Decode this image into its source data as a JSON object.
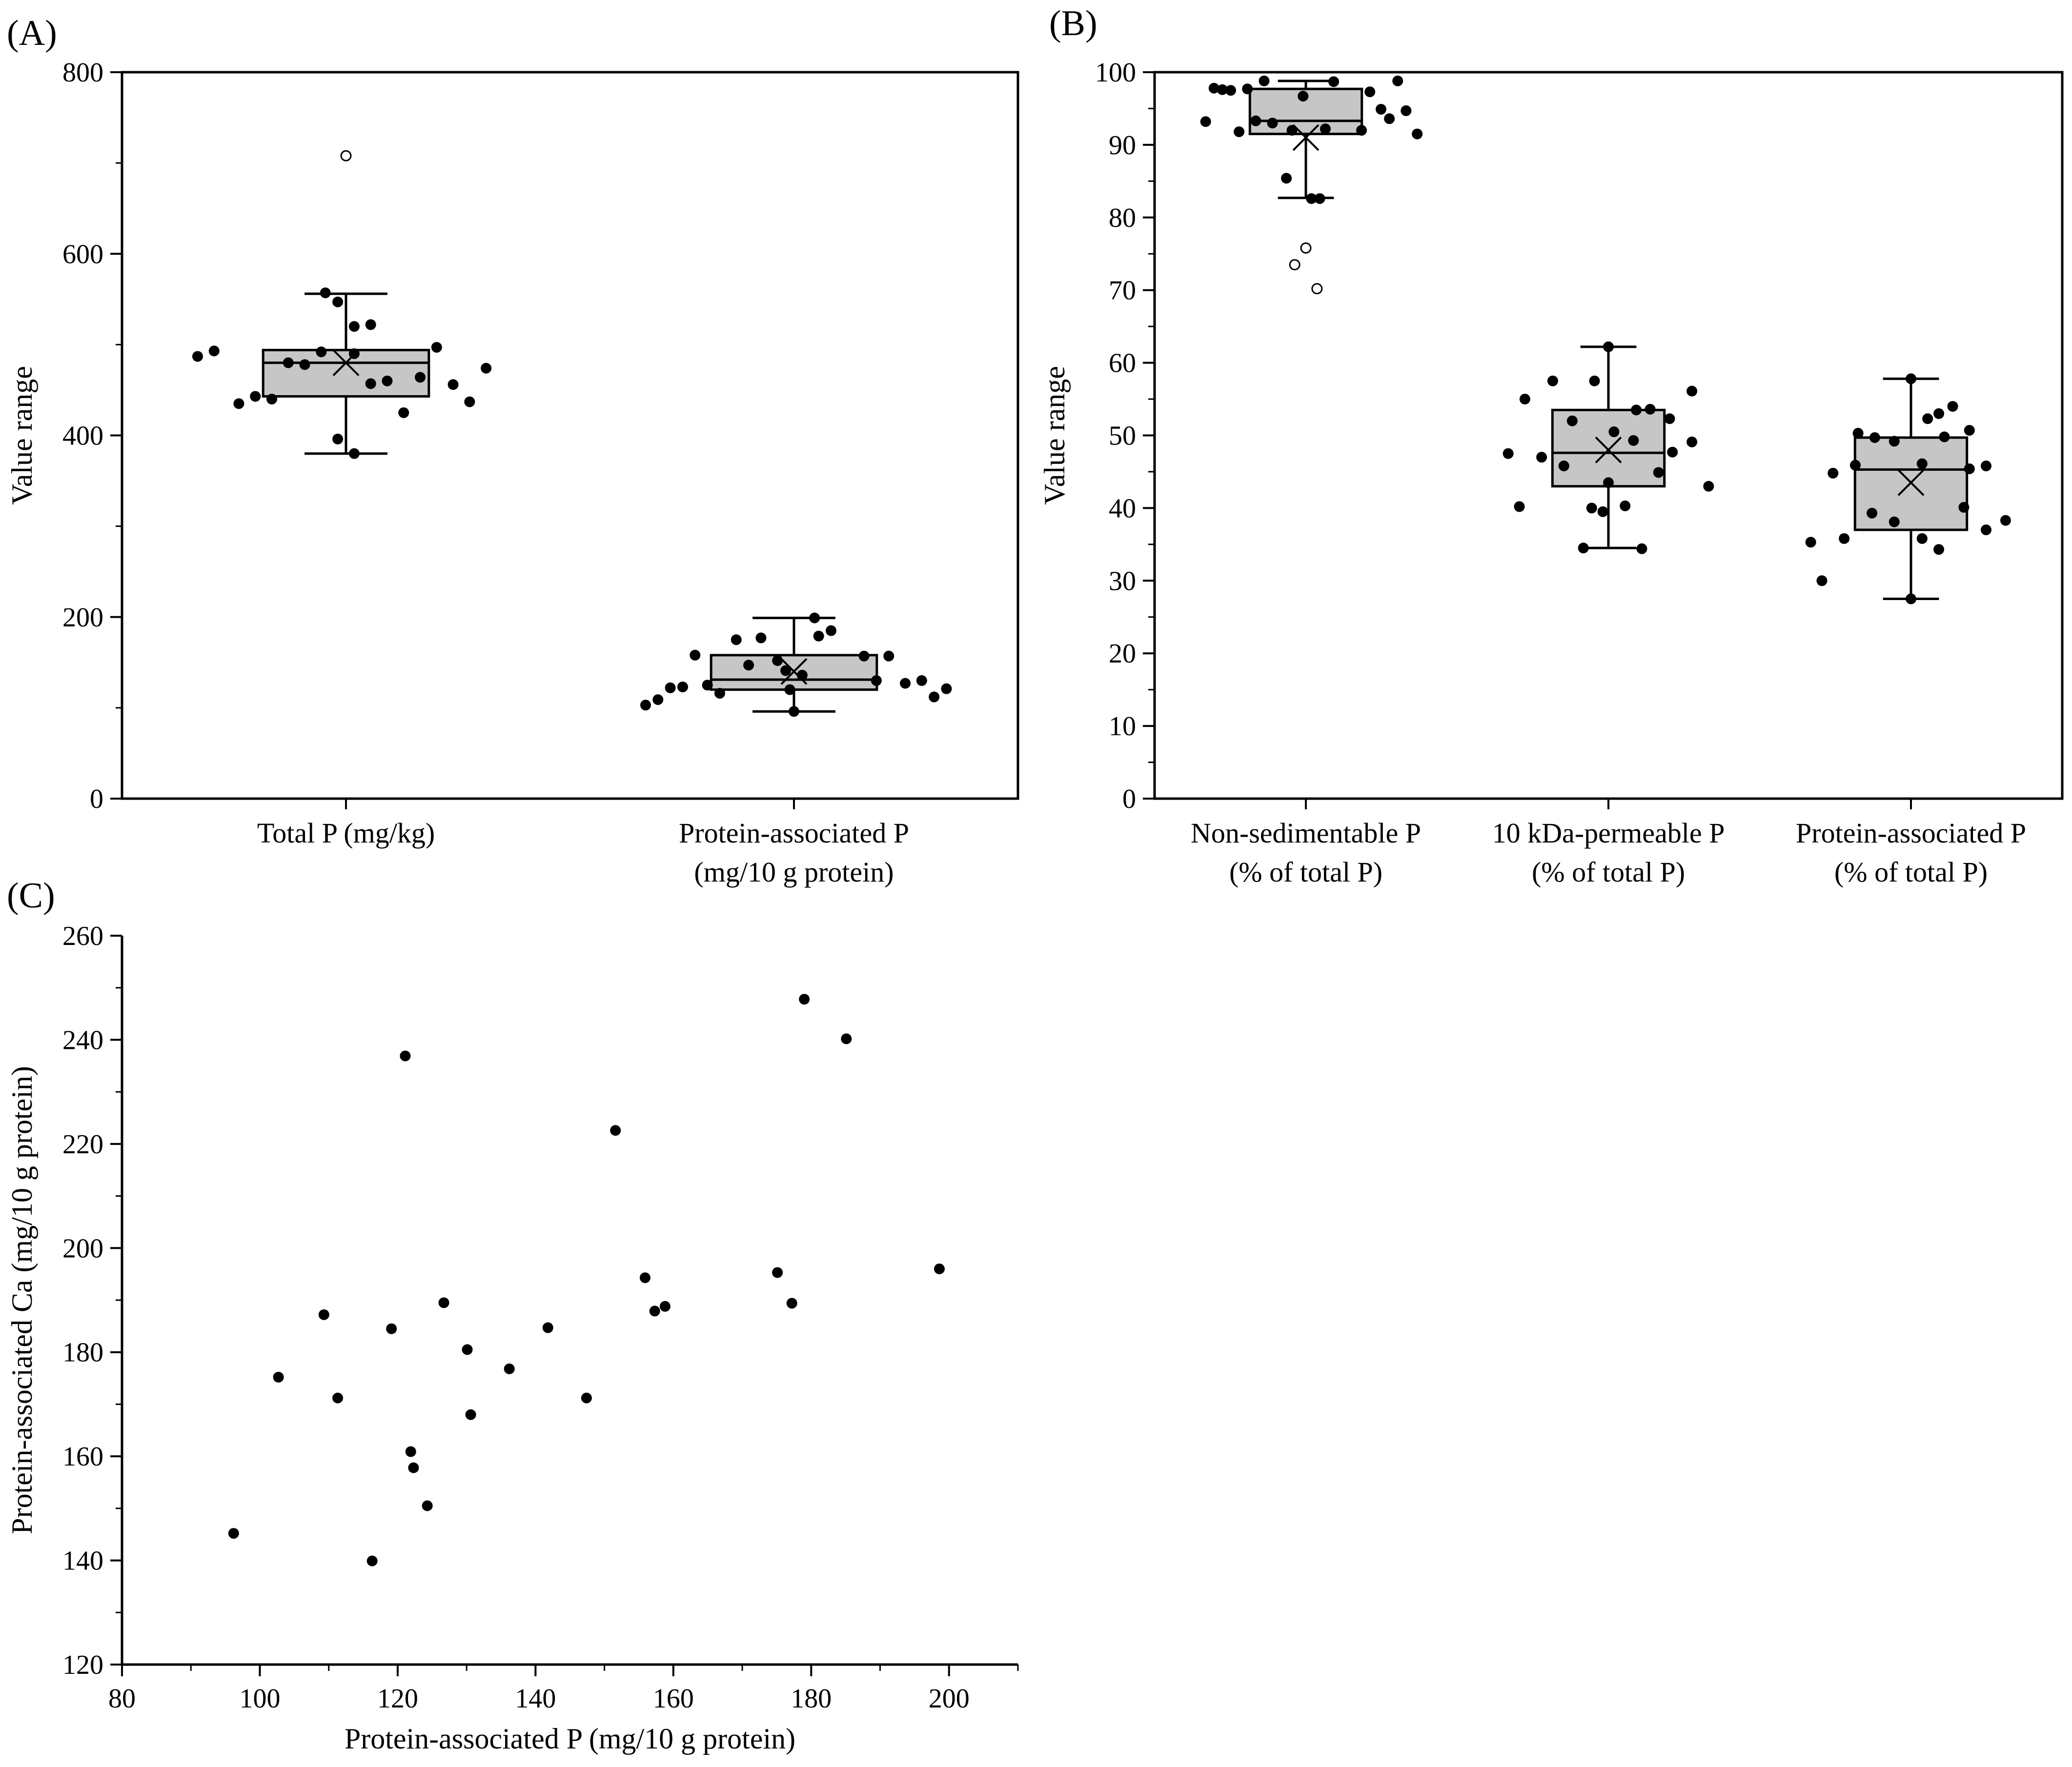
{
  "chart_data": [
    {
      "panel_label": "(A)",
      "type": "box",
      "ylabel": "Value range",
      "ylim": [
        0,
        800
      ],
      "yticks": [
        0,
        200,
        400,
        600,
        800
      ],
      "categories": [
        {
          "label_lines": [
            "Total P (mg/kg)"
          ],
          "box": {
            "q1": 443,
            "median": 480,
            "q3": 494,
            "mean": 480,
            "whisker_low": 380,
            "whisker_high": 556
          },
          "outliers": [
            708
          ],
          "points": [
            {
              "dx": -0.36,
              "v": 487
            },
            {
              "dx": -0.32,
              "v": 493
            },
            {
              "dx": -0.26,
              "v": 435
            },
            {
              "dx": -0.22,
              "v": 443
            },
            {
              "dx": -0.18,
              "v": 440
            },
            {
              "dx": -0.14,
              "v": 480
            },
            {
              "dx": -0.1,
              "v": 478
            },
            {
              "dx": -0.06,
              "v": 492
            },
            {
              "dx": -0.02,
              "v": 547
            },
            {
              "dx": -0.02,
              "v": 396
            },
            {
              "dx": -0.05,
              "v": 557
            },
            {
              "dx": 0.02,
              "v": 490
            },
            {
              "dx": 0.02,
              "v": 380
            },
            {
              "dx": 0.02,
              "v": 520
            },
            {
              "dx": 0.06,
              "v": 522
            },
            {
              "dx": 0.06,
              "v": 457
            },
            {
              "dx": 0.1,
              "v": 460
            },
            {
              "dx": 0.14,
              "v": 425
            },
            {
              "dx": 0.18,
              "v": 464
            },
            {
              "dx": 0.22,
              "v": 497
            },
            {
              "dx": 0.26,
              "v": 456
            },
            {
              "dx": 0.3,
              "v": 437
            },
            {
              "dx": 0.34,
              "v": 474
            }
          ]
        },
        {
          "label_lines": [
            "Protein-associated P",
            "(mg/10 g protein)"
          ],
          "box": {
            "q1": 120,
            "median": 131,
            "q3": 158,
            "mean": 140,
            "whisker_low": 96,
            "whisker_high": 199
          },
          "outliers": [],
          "points": [
            {
              "dx": -0.36,
              "v": 103
            },
            {
              "dx": -0.33,
              "v": 109
            },
            {
              "dx": -0.3,
              "v": 122
            },
            {
              "dx": -0.27,
              "v": 123
            },
            {
              "dx": -0.24,
              "v": 158
            },
            {
              "dx": -0.21,
              "v": 125
            },
            {
              "dx": -0.18,
              "v": 116
            },
            {
              "dx": -0.14,
              "v": 175
            },
            {
              "dx": -0.11,
              "v": 147
            },
            {
              "dx": -0.08,
              "v": 177
            },
            {
              "dx": -0.04,
              "v": 152
            },
            {
              "dx": -0.02,
              "v": 141
            },
            {
              "dx": 0.0,
              "v": 96
            },
            {
              "dx": 0.02,
              "v": 136
            },
            {
              "dx": 0.05,
              "v": 199
            },
            {
              "dx": 0.06,
              "v": 179
            },
            {
              "dx": 0.09,
              "v": 185
            },
            {
              "dx": -0.01,
              "v": 120
            },
            {
              "dx": 0.17,
              "v": 157
            },
            {
              "dx": 0.2,
              "v": 130
            },
            {
              "dx": 0.23,
              "v": 157
            },
            {
              "dx": 0.27,
              "v": 127
            },
            {
              "dx": 0.31,
              "v": 130
            },
            {
              "dx": 0.34,
              "v": 112
            },
            {
              "dx": 0.37,
              "v": 121
            }
          ]
        }
      ]
    },
    {
      "panel_label": "(B)",
      "type": "box",
      "ylabel": "Value range",
      "ylim": [
        0,
        100
      ],
      "yticks": [
        0,
        10,
        20,
        30,
        40,
        50,
        60,
        70,
        80,
        90,
        100
      ],
      "categories": [
        {
          "label_lines": [
            "Non-sedimentable P",
            "(% of total P)"
          ],
          "box": {
            "q1": 91.5,
            "median": 93.3,
            "q3": 97.7,
            "mean": 91.0,
            "whisker_low": 82.7,
            "whisker_high": 98.8
          },
          "outliers": [
            75.8,
            73.5,
            70.2
          ],
          "points": [
            {
              "dx": -0.36,
              "v": 93.2
            },
            {
              "dx": -0.33,
              "v": 97.8
            },
            {
              "dx": -0.3,
              "v": 97.6
            },
            {
              "dx": -0.27,
              "v": 97.5
            },
            {
              "dx": -0.24,
              "v": 91.8
            },
            {
              "dx": -0.21,
              "v": 97.7
            },
            {
              "dx": -0.18,
              "v": 93.3
            },
            {
              "dx": -0.15,
              "v": 98.8
            },
            {
              "dx": -0.12,
              "v": 93.0
            },
            {
              "dx": -0.07,
              "v": 85.4
            },
            {
              "dx": -0.05,
              "v": 92.0
            },
            {
              "dx": -0.01,
              "v": 96.7
            },
            {
              "dx": 0.02,
              "v": 82.6
            },
            {
              "dx": 0.05,
              "v": 82.6
            },
            {
              "dx": 0.07,
              "v": 92.2
            },
            {
              "dx": 0.1,
              "v": 98.7
            },
            {
              "dx": 0.2,
              "v": 92.0
            },
            {
              "dx": 0.23,
              "v": 97.3
            },
            {
              "dx": 0.27,
              "v": 94.9
            },
            {
              "dx": 0.3,
              "v": 93.6
            },
            {
              "dx": 0.33,
              "v": 98.8
            },
            {
              "dx": 0.36,
              "v": 94.7
            },
            {
              "dx": 0.4,
              "v": 91.5
            }
          ]
        },
        {
          "label_lines": [
            "10 kDa-permeable P",
            "(% of total P)"
          ],
          "box": {
            "q1": 43.0,
            "median": 47.6,
            "q3": 53.5,
            "mean": 48.0,
            "whisker_low": 34.5,
            "whisker_high": 62.2
          },
          "outliers": [],
          "points": [
            {
              "dx": -0.36,
              "v": 47.5
            },
            {
              "dx": -0.32,
              "v": 40.2
            },
            {
              "dx": -0.3,
              "v": 55.0
            },
            {
              "dx": -0.24,
              "v": 47.0
            },
            {
              "dx": -0.2,
              "v": 57.5
            },
            {
              "dx": -0.16,
              "v": 45.8
            },
            {
              "dx": -0.13,
              "v": 52.0
            },
            {
              "dx": -0.09,
              "v": 34.5
            },
            {
              "dx": -0.06,
              "v": 40.0
            },
            {
              "dx": -0.05,
              "v": 57.5
            },
            {
              "dx": -0.02,
              "v": 39.5
            },
            {
              "dx": 0.0,
              "v": 43.5
            },
            {
              "dx": 0.02,
              "v": 50.5
            },
            {
              "dx": 0.0,
              "v": 62.2
            },
            {
              "dx": 0.06,
              "v": 40.3
            },
            {
              "dx": 0.09,
              "v": 49.3
            },
            {
              "dx": 0.1,
              "v": 53.5
            },
            {
              "dx": 0.12,
              "v": 34.4
            },
            {
              "dx": 0.15,
              "v": 53.6
            },
            {
              "dx": 0.18,
              "v": 44.9
            },
            {
              "dx": 0.23,
              "v": 47.7
            },
            {
              "dx": 0.22,
              "v": 52.3
            },
            {
              "dx": 0.3,
              "v": 56.1
            },
            {
              "dx": 0.3,
              "v": 49.1
            },
            {
              "dx": 0.36,
              "v": 43.0
            }
          ]
        },
        {
          "label_lines": [
            "Protein-associated P",
            "(% of total P)"
          ],
          "box": {
            "q1": 37.0,
            "median": 45.3,
            "q3": 49.7,
            "mean": 43.5,
            "whisker_low": 27.5,
            "whisker_high": 57.8
          },
          "outliers": [],
          "points": [
            {
              "dx": -0.36,
              "v": 35.3
            },
            {
              "dx": -0.32,
              "v": 30.0
            },
            {
              "dx": -0.28,
              "v": 44.8
            },
            {
              "dx": -0.24,
              "v": 35.8
            },
            {
              "dx": -0.2,
              "v": 45.9
            },
            {
              "dx": -0.19,
              "v": 50.3
            },
            {
              "dx": -0.14,
              "v": 39.3
            },
            {
              "dx": -0.13,
              "v": 49.7
            },
            {
              "dx": -0.06,
              "v": 38.1
            },
            {
              "dx": -0.06,
              "v": 49.2
            },
            {
              "dx": 0.0,
              "v": 27.5
            },
            {
              "dx": 0.0,
              "v": 57.8
            },
            {
              "dx": 0.04,
              "v": 46.1
            },
            {
              "dx": 0.04,
              "v": 35.8
            },
            {
              "dx": 0.06,
              "v": 52.3
            },
            {
              "dx": 0.1,
              "v": 53.0
            },
            {
              "dx": 0.1,
              "v": 34.3
            },
            {
              "dx": 0.12,
              "v": 49.8
            },
            {
              "dx": 0.15,
              "v": 54.0
            },
            {
              "dx": 0.19,
              "v": 40.1
            },
            {
              "dx": 0.21,
              "v": 50.7
            },
            {
              "dx": 0.21,
              "v": 45.4
            },
            {
              "dx": 0.27,
              "v": 37.0
            },
            {
              "dx": 0.27,
              "v": 45.8
            },
            {
              "dx": 0.34,
              "v": 38.3
            }
          ]
        }
      ]
    },
    {
      "panel_label": "(C)",
      "type": "scatter",
      "xlabel": "Protein-associated P (mg/10 g protein)",
      "ylabel": "Protein-associated Ca (mg/10 g protein)",
      "xlim": [
        80,
        210
      ],
      "ylim": [
        120,
        260
      ],
      "xticks": [
        80,
        100,
        120,
        140,
        160,
        180,
        200
      ],
      "yticks": [
        120,
        140,
        160,
        180,
        200,
        220,
        240,
        260
      ],
      "points": [
        {
          "x": 96.2,
          "y": 145.2
        },
        {
          "x": 102.7,
          "y": 175.2
        },
        {
          "x": 109.3,
          "y": 187.2
        },
        {
          "x": 111.3,
          "y": 171.2
        },
        {
          "x": 116.3,
          "y": 139.9
        },
        {
          "x": 119.1,
          "y": 184.5
        },
        {
          "x": 121.1,
          "y": 236.9
        },
        {
          "x": 121.9,
          "y": 160.9
        },
        {
          "x": 122.3,
          "y": 157.8
        },
        {
          "x": 124.3,
          "y": 150.5
        },
        {
          "x": 126.7,
          "y": 189.5
        },
        {
          "x": 130.1,
          "y": 180.5
        },
        {
          "x": 130.6,
          "y": 168.0
        },
        {
          "x": 136.2,
          "y": 176.8
        },
        {
          "x": 141.8,
          "y": 184.7
        },
        {
          "x": 147.4,
          "y": 171.2
        },
        {
          "x": 151.6,
          "y": 222.6
        },
        {
          "x": 155.9,
          "y": 194.3
        },
        {
          "x": 157.3,
          "y": 187.9
        },
        {
          "x": 158.8,
          "y": 188.8
        },
        {
          "x": 175.1,
          "y": 195.3
        },
        {
          "x": 177.2,
          "y": 189.4
        },
        {
          "x": 179.0,
          "y": 247.8
        },
        {
          "x": 185.1,
          "y": 240.2
        },
        {
          "x": 198.6,
          "y": 196.0
        }
      ]
    }
  ]
}
